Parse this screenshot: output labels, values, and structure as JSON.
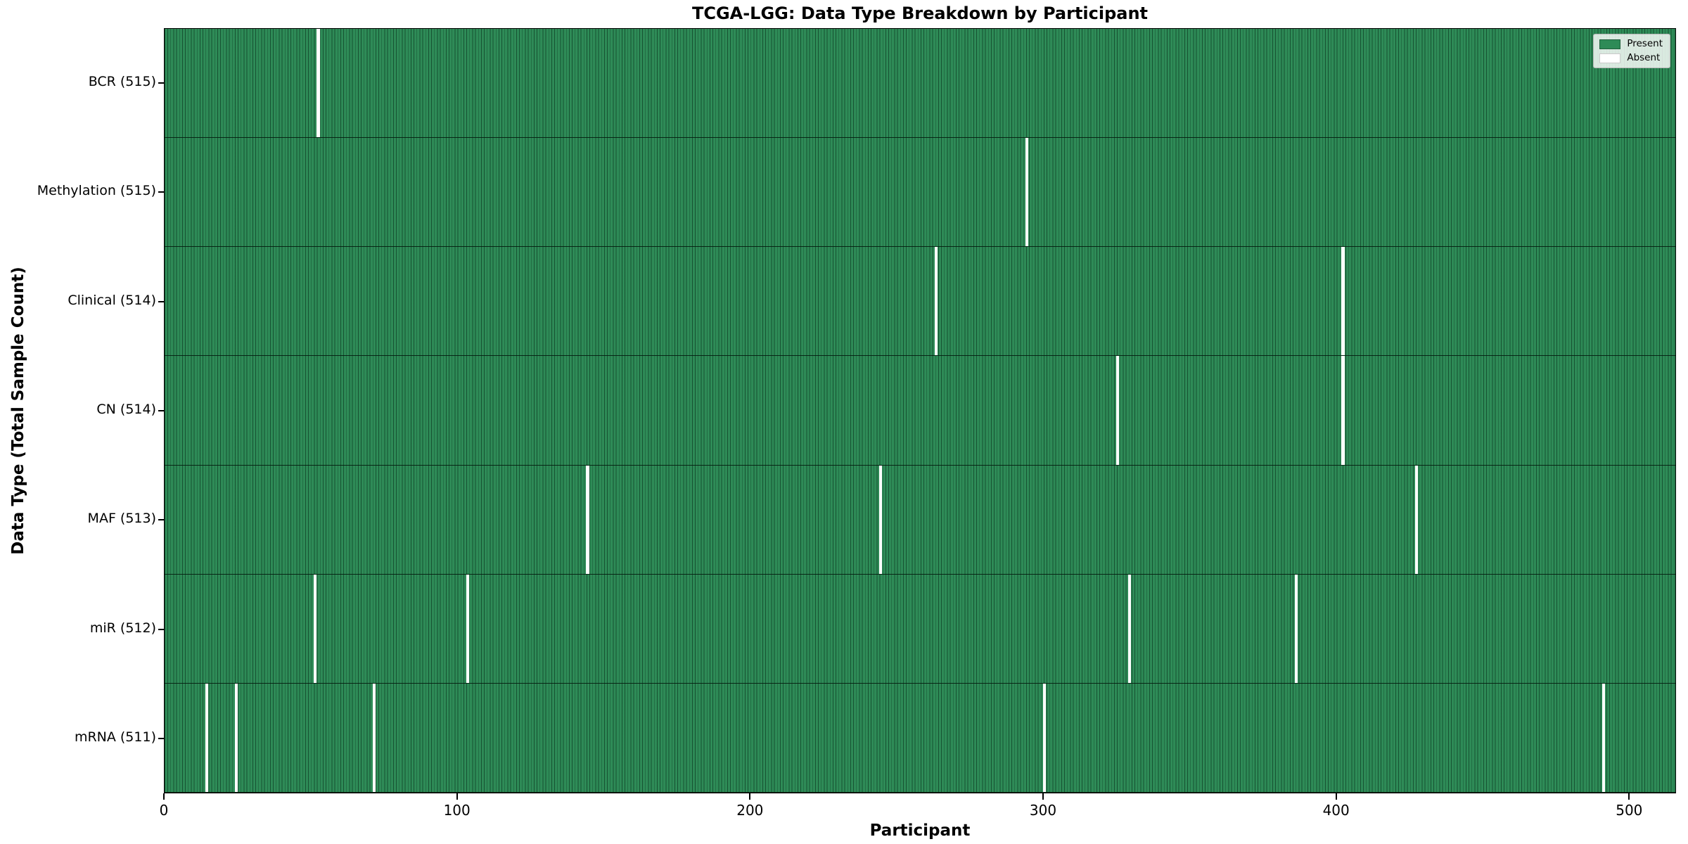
{
  "chart_data": {
    "type": "heatmap",
    "title": "TCGA-LGG: Data Type Breakdown by Participant",
    "xlabel": "Participant",
    "ylabel": "Data Type (Total Sample Count)",
    "x_range": [
      0,
      516
    ],
    "x_ticks": [
      0,
      100,
      200,
      300,
      400,
      500
    ],
    "x_tick_labels": [
      "0",
      "100",
      "200",
      "300",
      "400",
      "500"
    ],
    "total_participants": 516,
    "grid": false,
    "legend_position": "upper right",
    "legend": {
      "present": "Present",
      "absent": "Absent"
    },
    "colors": {
      "present": "#2e8b57",
      "absent": "#ffffff",
      "cell_edge": "#0a2213",
      "row_divider": "#041c10",
      "spine": "#000000"
    },
    "rows": [
      {
        "name": "BCR",
        "label": "BCR (515)",
        "count": 515,
        "absent_participants": [
          52
        ]
      },
      {
        "name": "Methylation",
        "label": "Methylation (515)",
        "count": 515,
        "absent_participants": [
          294
        ]
      },
      {
        "name": "Clinical",
        "label": "Clinical (514)",
        "count": 514,
        "absent_participants": [
          263,
          402
        ]
      },
      {
        "name": "CN",
        "label": "CN (514)",
        "count": 514,
        "absent_participants": [
          325,
          402
        ]
      },
      {
        "name": "MAF",
        "label": "MAF (513)",
        "count": 513,
        "absent_participants": [
          144,
          244,
          427
        ]
      },
      {
        "name": "miR",
        "label": "miR (512)",
        "count": 512,
        "absent_participants": [
          51,
          103,
          329,
          386
        ]
      },
      {
        "name": "mRNA",
        "label": "mRNA (511)",
        "count": 511,
        "absent_participants": [
          14,
          24,
          71,
          300,
          491
        ]
      }
    ]
  }
}
